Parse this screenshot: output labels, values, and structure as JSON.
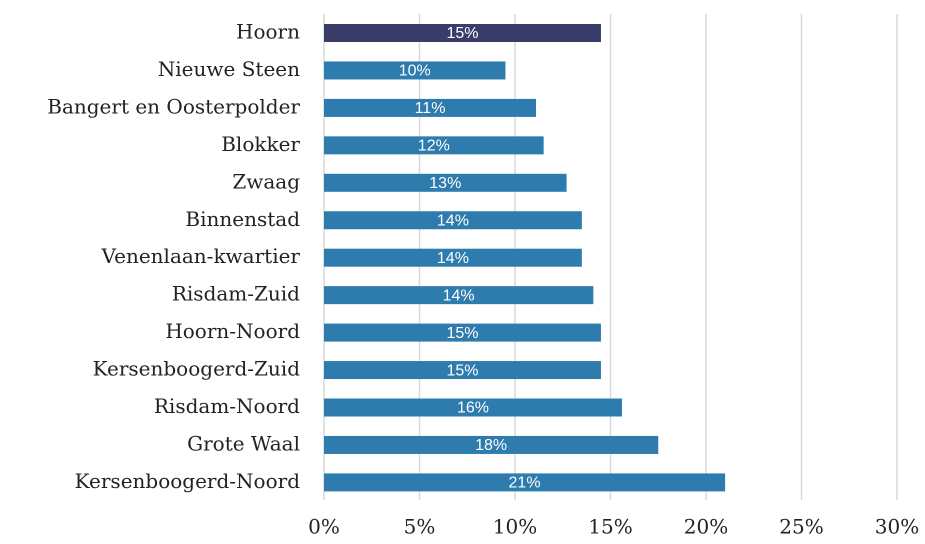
{
  "chart_data": {
    "type": "bar",
    "orientation": "horizontal",
    "categories": [
      "Hoorn",
      "Nieuwe Steen",
      "Bangert en Oosterpolder",
      "Blokker",
      "Zwaag",
      "Binnenstad",
      "Venenlaan-kwartier",
      "Risdam-Zuid",
      "Hoorn-Noord",
      "Kersenboogerd-Zuid",
      "Risdam-Noord",
      "Grote Waal",
      "Kersenboogerd-Noord"
    ],
    "values": [
      14.5,
      9.5,
      11.1,
      11.5,
      12.7,
      13.5,
      13.5,
      14.1,
      14.5,
      14.5,
      15.6,
      17.5,
      21.0
    ],
    "value_labels": [
      "15%",
      "10%",
      "11%",
      "12%",
      "13%",
      "14%",
      "14%",
      "14%",
      "15%",
      "15%",
      "16%",
      "18%",
      "21%"
    ],
    "colors": [
      "#3a3d6a",
      "#2e7bad",
      "#2e7bad",
      "#2e7bad",
      "#2e7bad",
      "#2e7bad",
      "#2e7bad",
      "#2e7bad",
      "#2e7bad",
      "#2e7bad",
      "#2e7bad",
      "#2e7bad",
      "#2e7bad"
    ],
    "xlim": [
      0,
      30
    ],
    "xticks": [
      {
        "value": 0,
        "label": "0%"
      },
      {
        "value": 5,
        "label": "5%"
      },
      {
        "value": 10,
        "label": "10%"
      },
      {
        "value": 15,
        "label": "15%"
      },
      {
        "value": 20,
        "label": "20%"
      },
      {
        "value": 25,
        "label": "25%"
      },
      {
        "value": 30,
        "label": "30%"
      }
    ],
    "grid": true
  }
}
